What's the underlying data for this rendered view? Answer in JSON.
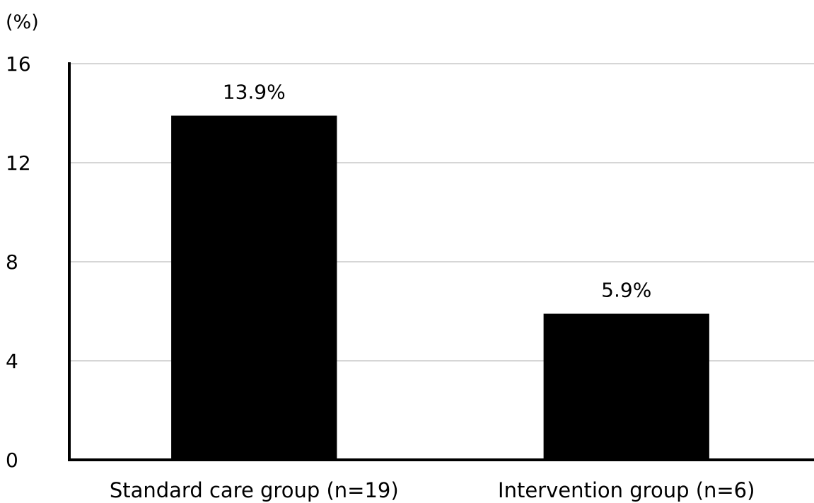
{
  "chart_data": {
    "type": "bar",
    "title": "",
    "xlabel": "",
    "ylabel": "",
    "y_unit_label": "(%)",
    "categories": [
      "Standard care group (n=19)",
      "Intervention group (n=6)"
    ],
    "values": [
      13.9,
      5.9
    ],
    "data_labels": [
      "13.9%",
      "5.9%"
    ],
    "ylim": [
      0,
      16
    ],
    "yticks": [
      0,
      4,
      8,
      12,
      16
    ],
    "ytick_labels": [
      "0",
      "4",
      "8",
      "12",
      "16"
    ],
    "grid": true,
    "legend": "none",
    "bar_color": "#000000",
    "grid_color": "#c8c8c8"
  }
}
